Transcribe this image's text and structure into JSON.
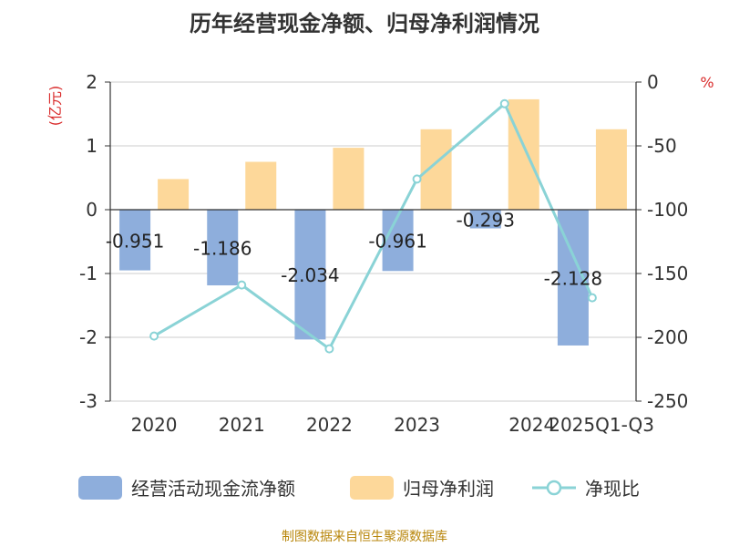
{
  "chart_data": {
    "title": "历年经营现金净额、归母净利润情况",
    "type": "bar+line",
    "categories": [
      "2020",
      "2021",
      "2022",
      "2023",
      "2024",
      "2025Q1-Q3"
    ],
    "y_left": {
      "unit": "(亿元)",
      "min": -3,
      "max": 2,
      "ticks": [
        "2",
        "1",
        "0",
        "-1",
        "-2",
        "-3"
      ]
    },
    "y_right": {
      "unit": "%",
      "min": -250,
      "max": 0,
      "ticks": [
        "0",
        "-50",
        "-100",
        "-150",
        "-200",
        "-250"
      ]
    },
    "series": [
      {
        "name": "经营活动现金流净额",
        "type": "bar",
        "axis": "left",
        "color": "#8eaedc",
        "values": [
          -0.951,
          -1.186,
          -2.034,
          -0.961,
          -0.293,
          -2.128
        ],
        "labels": [
          "-0.951",
          "-1.186",
          "-2.034",
          "-0.961",
          "-0.293",
          "-2.128"
        ]
      },
      {
        "name": "归母净利润",
        "type": "bar",
        "axis": "left",
        "color": "#fdd89a",
        "values": [
          0.48,
          0.75,
          0.97,
          1.26,
          1.73,
          1.26
        ]
      },
      {
        "name": "净现比",
        "type": "line",
        "axis": "right",
        "color": "#8ad3d6",
        "values": [
          -199,
          -159,
          -209,
          -76,
          -17,
          -169
        ]
      }
    ],
    "grid": true,
    "legend_position": "bottom"
  },
  "source": "制图数据来自恒生聚源数据库"
}
